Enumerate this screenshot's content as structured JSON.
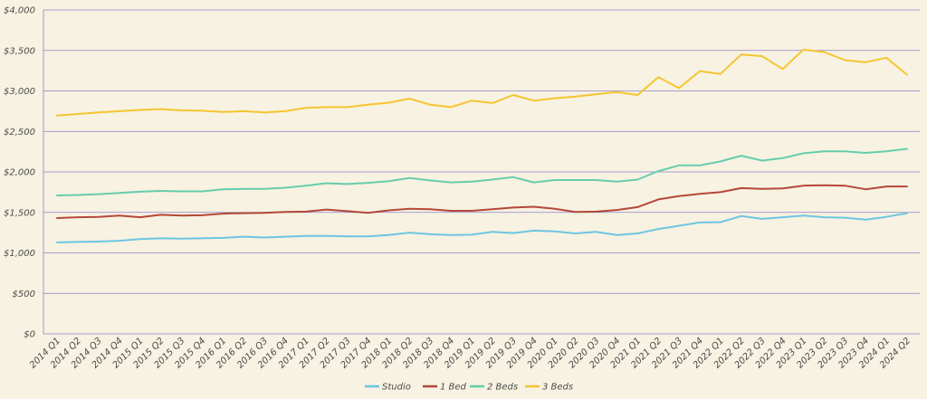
{
  "chart_data": {
    "type": "line",
    "title": "",
    "xlabel": "",
    "ylabel": "",
    "ylim": [
      0,
      4000
    ],
    "y_ticks": [
      0,
      500,
      1000,
      1500,
      2000,
      2500,
      3000,
      3500,
      4000
    ],
    "y_tick_labels": [
      "$0",
      "$500",
      "$1,000",
      "$1,500",
      "$2,000",
      "$2,500",
      "$3,000",
      "$3,500",
      "$4,000"
    ],
    "grid": "horizontal",
    "legend_position": "bottom-center",
    "categories": [
      "2014 Q1",
      "2014 Q2",
      "2014 Q3",
      "2014 Q4",
      "2015 Q1",
      "2015 Q2",
      "2015 Q3",
      "2015 Q4",
      "2016 Q1",
      "2016 Q2",
      "2016 Q3",
      "2016 Q4",
      "2017 Q1",
      "2017 Q2",
      "2017 Q3",
      "2017 Q4",
      "2018 Q1",
      "2018 Q2",
      "2018 Q3",
      "2018 Q4",
      "2019 Q1",
      "2019 Q2",
      "2019 Q3",
      "2019 Q4",
      "2020 Q1",
      "2020 Q2",
      "2020 Q3",
      "2020 Q4",
      "2021 Q1",
      "2021 Q2",
      "2021 Q3",
      "2021 Q4",
      "2022 Q1",
      "2022 Q2",
      "2022 Q3",
      "2022 Q4",
      "2023 Q1",
      "2023 Q2",
      "2023 Q3",
      "2023 Q4",
      "2024 Q1",
      "2024 Q2"
    ],
    "series": [
      {
        "name": "Studio",
        "color": "#6dc6e2",
        "values": [
          1130,
          1135,
          1140,
          1150,
          1170,
          1180,
          1175,
          1180,
          1185,
          1200,
          1190,
          1200,
          1210,
          1210,
          1205,
          1205,
          1220,
          1250,
          1230,
          1220,
          1225,
          1260,
          1245,
          1275,
          1265,
          1240,
          1260,
          1220,
          1240,
          1295,
          1335,
          1375,
          1380,
          1455,
          1420,
          1440,
          1460,
          1440,
          1435,
          1410,
          1445,
          1490
        ]
      },
      {
        "name": "1 Bed",
        "color": "#b5473a",
        "values": [
          1430,
          1440,
          1445,
          1460,
          1440,
          1470,
          1460,
          1465,
          1485,
          1490,
          1495,
          1505,
          1510,
          1535,
          1515,
          1495,
          1525,
          1545,
          1540,
          1520,
          1520,
          1540,
          1560,
          1570,
          1545,
          1505,
          1510,
          1530,
          1565,
          1660,
          1700,
          1730,
          1750,
          1800,
          1790,
          1795,
          1830,
          1835,
          1830,
          1785,
          1820,
          1820
        ]
      },
      {
        "name": "2 Beds",
        "color": "#66ccad",
        "values": [
          1710,
          1715,
          1725,
          1740,
          1755,
          1765,
          1760,
          1760,
          1785,
          1790,
          1790,
          1805,
          1830,
          1860,
          1850,
          1865,
          1885,
          1925,
          1895,
          1870,
          1880,
          1905,
          1935,
          1870,
          1900,
          1900,
          1900,
          1880,
          1905,
          2010,
          2080,
          2080,
          2130,
          2200,
          2140,
          2170,
          2230,
          2255,
          2255,
          2235,
          2255,
          2285
        ]
      },
      {
        "name": "3 Beds",
        "color": "#f5c531",
        "values": [
          2695,
          2715,
          2735,
          2750,
          2765,
          2775,
          2760,
          2755,
          2740,
          2750,
          2735,
          2750,
          2790,
          2800,
          2800,
          2830,
          2855,
          2905,
          2830,
          2800,
          2880,
          2850,
          2950,
          2880,
          2910,
          2930,
          2960,
          2985,
          2950,
          3170,
          3035,
          3245,
          3210,
          3450,
          3430,
          3270,
          3510,
          3480,
          3380,
          3355,
          3410,
          3200
        ]
      }
    ]
  }
}
